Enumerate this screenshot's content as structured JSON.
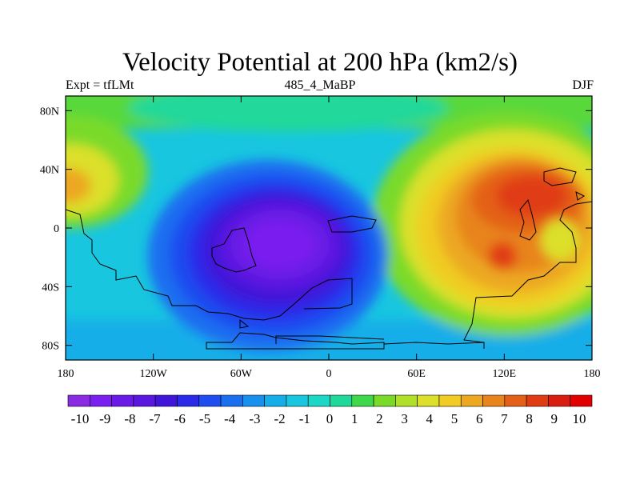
{
  "chart_data": {
    "type": "heatmap",
    "title": "Velocity Potential at 200 hPa (km2/s)",
    "left_string": "Expt = tfLMt",
    "center_string": "485_4_MaBP",
    "right_string": "DJF",
    "projection": "cylindrical equidistant",
    "x_range": [
      -180,
      180
    ],
    "y_range": [
      -90,
      90
    ],
    "x_ticks": [
      -180,
      -120,
      -60,
      0,
      60,
      120,
      180
    ],
    "x_tick_labels": [
      "180",
      "120W",
      "60W",
      "0",
      "60E",
      "120E",
      "180"
    ],
    "y_ticks": [
      80,
      40,
      0,
      -40,
      -80
    ],
    "y_tick_labels": [
      "80N",
      "40N",
      "0",
      "40S",
      "80S"
    ],
    "colorbar_labels": [
      "-10",
      "-9",
      "-8",
      "-7",
      "-6",
      "-5",
      "-4",
      "-3",
      "-2",
      "-1",
      "0",
      "1",
      "2",
      "3",
      "4",
      "5",
      "6",
      "7",
      "8",
      "9",
      "10"
    ],
    "colorbar_colors": [
      "#8a2be2",
      "#7a1ff0",
      "#6a1ae6",
      "#5a17e0",
      "#3f16d8",
      "#2a2ae8",
      "#1e4cf0",
      "#1a6ef0",
      "#1890ee",
      "#16aee8",
      "#18c6e0",
      "#1cd6c6",
      "#20d89a",
      "#3fd84a",
      "#7ada2a",
      "#b0e028",
      "#dce02a",
      "#f0cc24",
      "#eca820",
      "#e8841c",
      "#e46018",
      "#e03c14",
      "#d81e10",
      "#e00000"
    ],
    "field_features": [
      {
        "kind": "minimum",
        "lon": -35,
        "lat": -15,
        "value": -10
      },
      {
        "kind": "maximum",
        "lon": 130,
        "lat": 25,
        "value": 10
      },
      {
        "kind": "maximum",
        "lon": 120,
        "lat": -18,
        "value": 9
      },
      {
        "kind": "maximum",
        "lon": -178,
        "lat": 28,
        "value": 7
      }
    ]
  }
}
